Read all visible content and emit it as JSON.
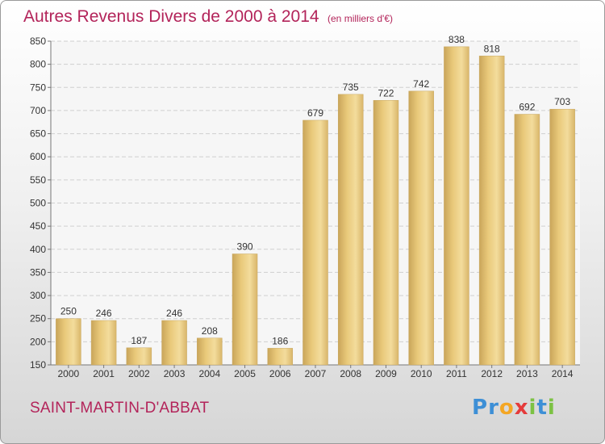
{
  "header": {
    "title": "Autres Revenus Divers de 2000 à 2014",
    "unit": "(en milliers d'€)"
  },
  "chart_data": {
    "type": "bar",
    "title": "Autres Revenus Divers de 2000 à 2014",
    "subtitle": "(en milliers d'€)",
    "xlabel": "",
    "ylabel": "",
    "categories": [
      "2000",
      "2001",
      "2002",
      "2003",
      "2004",
      "2005",
      "2006",
      "2007",
      "2008",
      "2009",
      "2010",
      "2011",
      "2012",
      "2013",
      "2014"
    ],
    "values": [
      250,
      246,
      187,
      246,
      208,
      390,
      186,
      679,
      735,
      722,
      742,
      838,
      818,
      692,
      703
    ],
    "ylim": [
      150,
      850
    ],
    "yticks": [
      150,
      200,
      250,
      300,
      350,
      400,
      450,
      500,
      550,
      600,
      650,
      700,
      750,
      800,
      850
    ],
    "grid": true,
    "bar_color": "#e9c97a",
    "grid_color": "#cfcfcf"
  },
  "footer": {
    "commune": "SAINT-MARTIN-D'ABBAT",
    "brand_letters": [
      "P",
      "r",
      "o",
      "x",
      "i",
      "t",
      "i"
    ],
    "brand_colors": [
      "#3d8fd6",
      "#3d8fd6",
      "#f4a623",
      "#e53b3b",
      "#7cc243",
      "#3d8fd6",
      "#7cc243"
    ]
  },
  "colors": {
    "accent": "#b3245a"
  }
}
